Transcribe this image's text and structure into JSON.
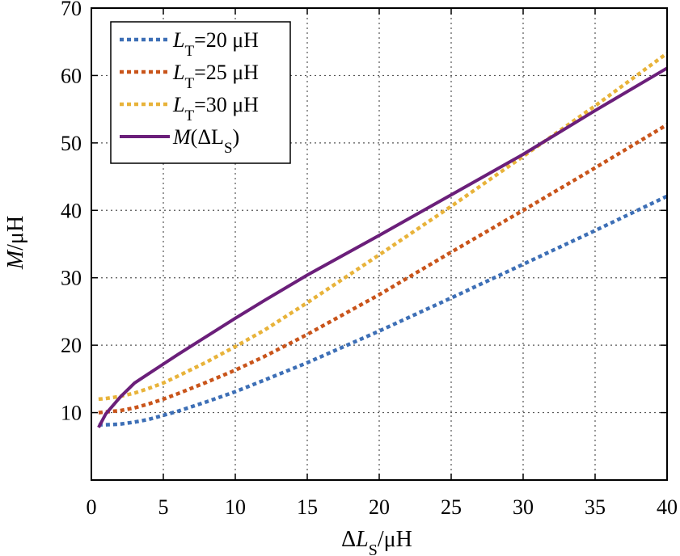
{
  "chart_data": {
    "type": "line",
    "xlabel": {
      "prefix": "Δ",
      "var": "L",
      "sub": "S",
      "unit": "/μH"
    },
    "ylabel": {
      "var": "M",
      "unit": "/μH"
    },
    "xlim": [
      0,
      40
    ],
    "ylim": [
      0,
      70
    ],
    "xticks": [
      0,
      5,
      10,
      15,
      20,
      25,
      30,
      35,
      40
    ],
    "yticks": [
      10,
      20,
      30,
      40,
      50,
      60,
      70
    ],
    "grid": true,
    "legend_position": "top-left",
    "series": [
      {
        "legend": {
          "var": "L",
          "sub": "T",
          "rest": "=20 μH"
        },
        "color": "#3d6fb6",
        "style": "dotted",
        "x": [
          0.5,
          1,
          2,
          3,
          4,
          5,
          6,
          8,
          10,
          12,
          15,
          20,
          25,
          30,
          35,
          40
        ],
        "y": [
          8.2,
          8.2,
          8.3,
          8.6,
          9.0,
          9.6,
          10.2,
          11.6,
          13.1,
          14.8,
          17.4,
          22.1,
          27.0,
          32.0,
          37.0,
          42.1
        ]
      },
      {
        "legend": {
          "var": "L",
          "sub": "T",
          "rest": "=25 μH"
        },
        "color": "#c9541a",
        "style": "dotted",
        "x": [
          0.5,
          1,
          2,
          3,
          4,
          5,
          6,
          8,
          10,
          12,
          15,
          20,
          25,
          30,
          35,
          40
        ],
        "y": [
          10.0,
          10.1,
          10.3,
          10.7,
          11.3,
          12.0,
          12.8,
          14.5,
          16.3,
          18.3,
          21.6,
          27.5,
          33.8,
          40.0,
          46.3,
          52.7
        ]
      },
      {
        "legend": {
          "var": "L",
          "sub": "T",
          "rest": "=30 μH"
        },
        "color": "#e8b33a",
        "style": "dotted",
        "x": [
          0.5,
          1,
          2,
          3,
          4,
          5,
          6,
          8,
          10,
          12,
          15,
          20,
          25,
          30,
          35,
          40
        ],
        "y": [
          12.0,
          12.1,
          12.4,
          12.9,
          13.6,
          14.4,
          15.4,
          17.5,
          19.8,
          22.2,
          26.3,
          33.4,
          40.6,
          48.0,
          55.5,
          63.3
        ]
      },
      {
        "legend": {
          "var": "M",
          "sub": "S",
          "rest": "(ΔL",
          "close": ")"
        },
        "color": "#6b1f7a",
        "style": "solid",
        "x": [
          0.5,
          1,
          2,
          3,
          4,
          5,
          6,
          8,
          10,
          12,
          15,
          20,
          25,
          30,
          35,
          40
        ],
        "y": [
          7.8,
          9.8,
          12.3,
          14.4,
          15.8,
          17.2,
          18.6,
          21.3,
          24.0,
          26.6,
          30.4,
          36.3,
          42.3,
          48.3,
          54.8,
          61.1
        ]
      }
    ]
  }
}
